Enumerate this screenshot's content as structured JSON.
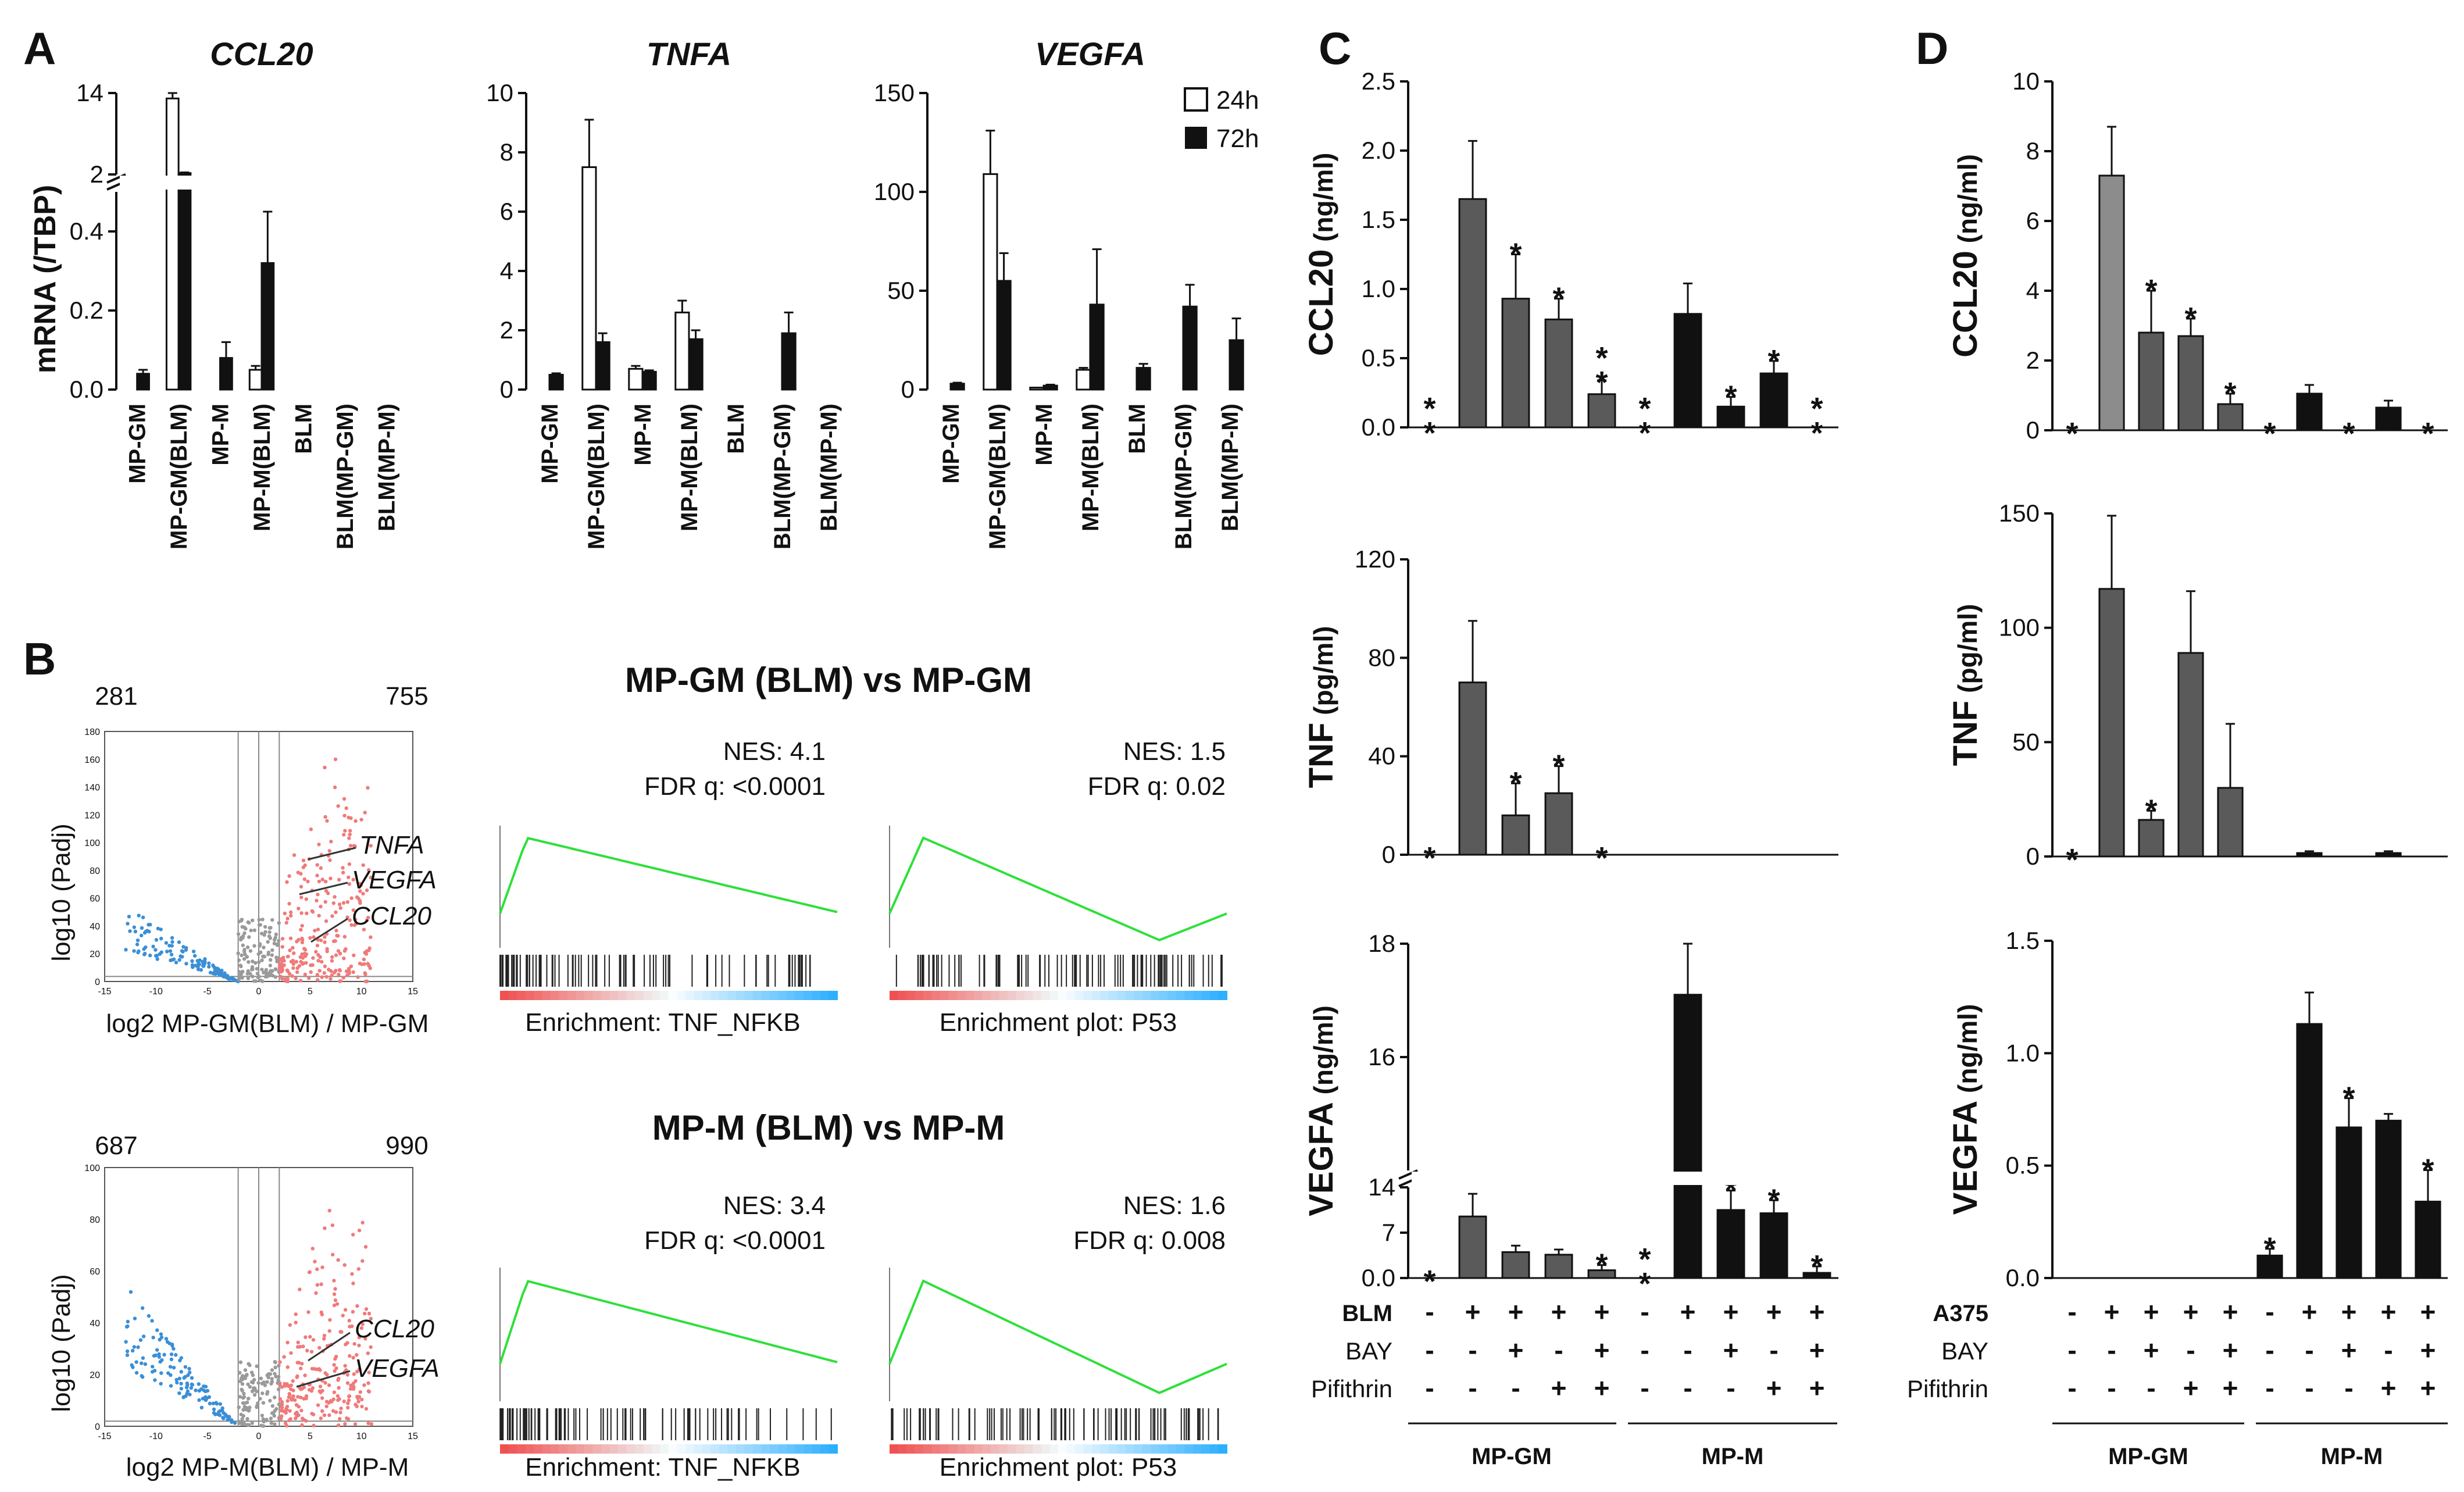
{
  "panel_letters": {
    "A": "A",
    "B": "B",
    "C": "C",
    "D": "D"
  },
  "panel_a": {
    "y_label": "mRNA (/TBP)",
    "legend": [
      {
        "label": "24h",
        "color": "#ffffff"
      },
      {
        "label": "72h",
        "color": "#111111"
      }
    ]
  },
  "panel_b": {
    "comparisons": [
      {
        "title": "MP-GM (BLM) vs MP-GM",
        "down_count": "281",
        "up_count": "755",
        "volcano_ylabel": "log10 (Padj)",
        "volcano_xlabel": "log2 MP-GM(BLM) / MP-GM",
        "gene_labels": [
          "TNFA",
          "VEGFA",
          "CCL20"
        ],
        "gsea": [
          {
            "nes": "NES: 4.1",
            "fdr": "FDR q: <0.0001",
            "caption": "Enrichment: TNF_NFKB"
          },
          {
            "nes": "NES: 1.5",
            "fdr": "FDR q: 0.02",
            "caption": "Enrichment plot: P53"
          }
        ]
      },
      {
        "title": "MP-M (BLM) vs MP-M",
        "down_count": "687",
        "up_count": "990",
        "volcano_ylabel": "log10 (Padj)",
        "volcano_xlabel": "log2 MP-M(BLM) / MP-M",
        "gene_labels": [
          "CCL20",
          "VEGFA"
        ],
        "gsea": [
          {
            "nes": "NES: 3.4",
            "fdr": "FDR q: <0.0001",
            "caption": "Enrichment: TNF_NFKB"
          },
          {
            "nes": "NES: 1.6",
            "fdr": "FDR q: 0.008",
            "caption": "Enrichment plot: P53"
          }
        ]
      }
    ],
    "volcano_ticks": {
      "x": [
        "-15",
        "-10",
        "-5",
        "0",
        "5",
        "10",
        "15"
      ],
      "y1": [
        "0",
        "20",
        "40",
        "60",
        "80",
        "100",
        "120",
        "140",
        "160",
        "180"
      ],
      "y2": [
        "0",
        "20",
        "40",
        "60",
        "80",
        "100"
      ]
    }
  },
  "panel_c": {
    "condition_rows": [
      {
        "label": "BLM",
        "signs": [
          "-",
          "+",
          "+",
          "+",
          "+",
          "-",
          "+",
          "+",
          "+",
          "+"
        ]
      },
      {
        "label": "BAY",
        "signs": [
          "-",
          "-",
          "+",
          "-",
          "+",
          "-",
          "-",
          "+",
          "-",
          "+"
        ]
      },
      {
        "label": "Pifithrin",
        "signs": [
          "-",
          "-",
          "-",
          "+",
          "+",
          "-",
          "-",
          "-",
          "+",
          "+"
        ]
      }
    ],
    "group_labels": [
      "MP-GM",
      "MP-M"
    ]
  },
  "panel_d": {
    "condition_rows": [
      {
        "label": "A375",
        "signs": [
          "-",
          "+",
          "+",
          "+",
          "+",
          "-",
          "+",
          "+",
          "+",
          "+"
        ]
      },
      {
        "label": "BAY",
        "signs": [
          "-",
          "-",
          "+",
          "-",
          "+",
          "-",
          "-",
          "+",
          "-",
          "+"
        ]
      },
      {
        "label": "Pifithrin",
        "signs": [
          "-",
          "-",
          "-",
          "+",
          "+",
          "-",
          "-",
          "-",
          "+",
          "+"
        ]
      }
    ],
    "group_labels": [
      "MP-GM",
      "MP-M"
    ]
  },
  "chart_data": [
    {
      "id": "A-CCL20",
      "type": "bar",
      "title": "CCL20",
      "ylabel": "mRNA (/TBP)",
      "categories": [
        "MP-GM",
        "MP-GM(BLM)",
        "MP-M",
        "MP-M(BLM)",
        "BLM",
        "BLM(MP-GM)",
        "BLM(MP-M)"
      ],
      "axis_break": {
        "lower_max": 0.5,
        "upper_ticks": [
          "2",
          "14"
        ]
      },
      "yticks": [
        "0.0",
        "0.2",
        "0.4"
      ],
      "series": [
        {
          "name": "24h",
          "values": [
            0,
            13.2,
            0,
            0.05,
            0,
            0,
            0
          ],
          "errors": [
            0,
            0.8,
            0,
            0.01,
            0,
            0,
            0
          ]
        },
        {
          "name": "72h",
          "values": [
            0.04,
            2.2,
            0.08,
            0.32,
            0,
            0,
            0
          ],
          "errors": [
            0.01,
            0.1,
            0.04,
            0.13,
            0,
            0,
            0
          ]
        }
      ]
    },
    {
      "id": "A-TNFA",
      "type": "bar",
      "title": "TNFA",
      "ylim": [
        0,
        10
      ],
      "yticks": [
        "0",
        "2",
        "4",
        "6",
        "8",
        "10"
      ],
      "categories": [
        "MP-GM",
        "MP-GM(BLM)",
        "MP-M",
        "MP-M(BLM)",
        "BLM",
        "BLM(MP-GM)",
        "BLM(MP-M)"
      ],
      "series": [
        {
          "name": "24h",
          "values": [
            0,
            7.5,
            0.7,
            2.6,
            0,
            0,
            0
          ],
          "errors": [
            0,
            1.6,
            0.1,
            0.4,
            0,
            0,
            0
          ]
        },
        {
          "name": "72h",
          "values": [
            0.5,
            1.6,
            0.6,
            1.7,
            0,
            1.9,
            0
          ],
          "errors": [
            0.05,
            0.3,
            0.05,
            0.3,
            0,
            0.7,
            0
          ]
        }
      ]
    },
    {
      "id": "A-VEGFA",
      "type": "bar",
      "title": "VEGFA",
      "ylim": [
        0,
        150
      ],
      "yticks": [
        "0",
        "50",
        "100",
        "150"
      ],
      "categories": [
        "MP-GM",
        "MP-GM(BLM)",
        "MP-M",
        "MP-M(BLM)",
        "BLM",
        "BLM(MP-GM)",
        "BLM(MP-M)"
      ],
      "series": [
        {
          "name": "24h",
          "values": [
            0,
            109,
            1,
            10,
            0,
            0,
            0
          ],
          "errors": [
            0,
            22,
            0,
            1,
            0,
            0,
            0
          ]
        },
        {
          "name": "72h",
          "values": [
            3,
            55,
            2,
            43,
            11,
            42,
            25
          ],
          "errors": [
            0.5,
            14,
            0.5,
            28,
            2,
            11,
            11
          ]
        }
      ]
    },
    {
      "id": "C-CCL20",
      "type": "bar",
      "ylabel": "CCL20 (ng/ml)",
      "ylim": [
        0,
        2.5
      ],
      "yticks": [
        "0.0",
        "0.5",
        "1.0",
        "1.5",
        "2.0",
        "2.5"
      ],
      "values": [
        0,
        1.65,
        0.93,
        0.78,
        0.24,
        0,
        0.82,
        0.15,
        0.39,
        0
      ],
      "errors": [
        0,
        0.42,
        0.32,
        0.15,
        0.1,
        0,
        0.22,
        0.07,
        0.09,
        0
      ],
      "stars": [
        "**",
        "",
        "*",
        "*",
        "**",
        "**",
        "",
        "*",
        "*",
        "**"
      ]
    },
    {
      "id": "C-TNF",
      "type": "bar",
      "ylabel": "TNF (pg/ml)",
      "ylim": [
        0,
        120
      ],
      "yticks": [
        "0",
        "40",
        "80",
        "120"
      ],
      "values": [
        0,
        70,
        16,
        25,
        0,
        0,
        0,
        0,
        0,
        0
      ],
      "errors": [
        0,
        25,
        13,
        11,
        0,
        0,
        0,
        0,
        0,
        0
      ],
      "stars": [
        "*",
        "",
        "*",
        "*",
        "*",
        "",
        "",
        "",
        "",
        ""
      ]
    },
    {
      "id": "C-VEGFA",
      "type": "bar",
      "ylabel": "VEGFA (ng/ml)",
      "axis_break": {
        "lower_max": 14,
        "upper_ticks": [
          "16",
          "18"
        ]
      },
      "yticks": [
        "0.0",
        "7",
        "14"
      ],
      "values": [
        0,
        9.5,
        4,
        3.6,
        1.2,
        0,
        17.1,
        10.5,
        10,
        0.8
      ],
      "errors": [
        0,
        3.5,
        1,
        0.8,
        0.8,
        0,
        0.9,
        3,
        2,
        1
      ],
      "stars": [
        "*",
        "",
        "",
        "",
        "*",
        "**",
        "",
        "*",
        "*",
        "*"
      ]
    },
    {
      "id": "D-CCL20",
      "type": "bar",
      "ylabel": "CCL20 (ng/ml)",
      "ylim": [
        0,
        10
      ],
      "yticks": [
        "0",
        "2",
        "4",
        "6",
        "8",
        "10"
      ],
      "values": [
        0,
        7.3,
        2.8,
        2.7,
        0.75,
        0,
        1.05,
        0,
        0.65,
        0
      ],
      "errors": [
        0,
        1.4,
        1.2,
        0.5,
        0.3,
        0,
        0.25,
        0,
        0.2,
        0
      ],
      "stars": [
        "*",
        "",
        "*",
        "*",
        "*",
        "*",
        "",
        "*",
        "",
        "*"
      ]
    },
    {
      "id": "D-TNF",
      "type": "bar",
      "ylabel": "TNF (pg/ml)",
      "ylim": [
        0,
        150
      ],
      "yticks": [
        "0",
        "50",
        "100",
        "150"
      ],
      "values": [
        0,
        117,
        16,
        89,
        30,
        0,
        1.5,
        0,
        1.5,
        0
      ],
      "errors": [
        0,
        32,
        4,
        27,
        28,
        0,
        0.8,
        0,
        0.8,
        0
      ],
      "stars": [
        "*",
        "",
        "*",
        "",
        "",
        "",
        "",
        "",
        "",
        ""
      ]
    },
    {
      "id": "D-VEGFA",
      "type": "bar",
      "ylabel": "VEGFA (ng/ml)",
      "ylim": [
        0,
        1.5
      ],
      "yticks": [
        "0.0",
        "0.5",
        "1.0",
        "1.5"
      ],
      "values": [
        0,
        0,
        0,
        0,
        0,
        0.1,
        1.13,
        0.67,
        0.7,
        0.34
      ],
      "errors": [
        0,
        0,
        0,
        0,
        0,
        0.03,
        0.14,
        0.13,
        0.03,
        0.14
      ],
      "stars": [
        "",
        "",
        "",
        "",
        "",
        "*",
        "",
        "*",
        "",
        "*"
      ]
    }
  ]
}
